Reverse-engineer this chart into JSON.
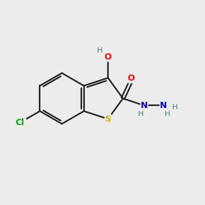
{
  "background_color": "#ececec",
  "bond_color": "#202020",
  "atom_colors": {
    "O": "#ff0000",
    "S": "#c8b400",
    "N": "#0000ee",
    "Cl": "#00aa00",
    "H": "#408080",
    "C": "#202020"
  },
  "figsize": [
    3.0,
    3.0
  ],
  "dpi": 100,
  "bx": 3.0,
  "by": 5.2,
  "br": 1.25
}
